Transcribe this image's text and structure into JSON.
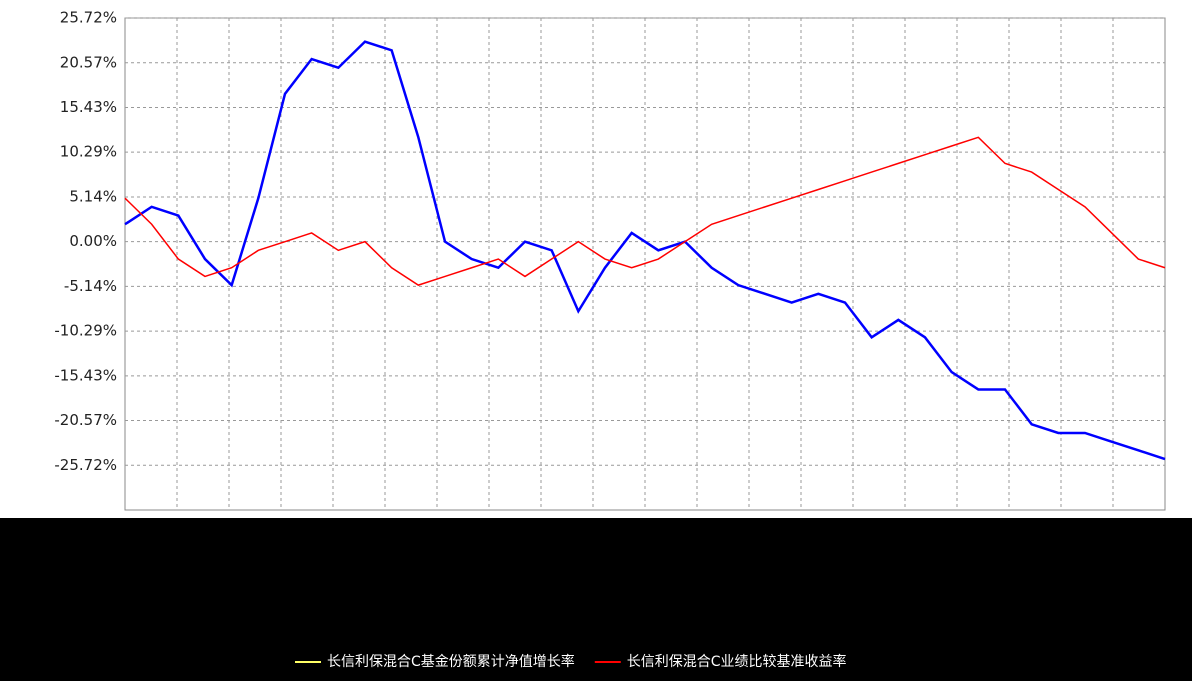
{
  "chart_data": {
    "type": "line",
    "categories": [
      null,
      null,
      null,
      null,
      null,
      null,
      null,
      null,
      null,
      null,
      null,
      null,
      null,
      null,
      null,
      null,
      null,
      null,
      null,
      null,
      null,
      null,
      null,
      null,
      null,
      null,
      null,
      null,
      null,
      null,
      null,
      null,
      null,
      null,
      null,
      null,
      null,
      null,
      null,
      null
    ],
    "series": [
      {
        "name": "长信利保混合C基金份额累计净值增长率",
        "color": "#0000ff",
        "values": [
          2,
          4,
          3,
          -2,
          -5,
          5,
          17,
          21,
          20,
          23,
          22,
          12,
          0,
          -2,
          -3,
          0,
          -1,
          -8,
          -3,
          1,
          -1,
          0,
          -3,
          -5,
          -6,
          -7,
          -6,
          -7,
          -11,
          -9,
          -11,
          -15,
          -17,
          -17,
          -21,
          -22,
          -22,
          -23,
          -24,
          -25
        ]
      },
      {
        "name": "长信利保混合C业绩比较基准收益率",
        "color": "#ff0000",
        "values": [
          5,
          2,
          -2,
          -4,
          -3,
          -1,
          0,
          1,
          -1,
          0,
          -3,
          -5,
          -4,
          -3,
          -2,
          -4,
          -2,
          0,
          -2,
          -3,
          -2,
          0,
          2,
          3,
          4,
          5,
          6,
          7,
          8,
          9,
          10,
          11,
          12,
          9,
          8,
          6,
          4,
          1,
          -2,
          -3
        ]
      }
    ],
    "ylim": [
      -30.86,
      25.72
    ],
    "yticks": [
      {
        "value": 25.72,
        "label": "25.72%"
      },
      {
        "value": 20.57,
        "label": "20.57%"
      },
      {
        "value": 15.43,
        "label": "15.43%"
      },
      {
        "value": 10.29,
        "label": "10.29%"
      },
      {
        "value": 5.14,
        "label": "5.14%"
      },
      {
        "value": 0,
        "label": "0.00%"
      },
      {
        "value": -5.14,
        "label": "-5.14%"
      },
      {
        "value": -10.29,
        "label": "-10.29%"
      },
      {
        "value": -15.43,
        "label": "-15.43%"
      },
      {
        "value": -20.57,
        "label": "-20.57%"
      },
      {
        "value": -25.72,
        "label": "-25.72%"
      }
    ],
    "grid": true
  }
}
